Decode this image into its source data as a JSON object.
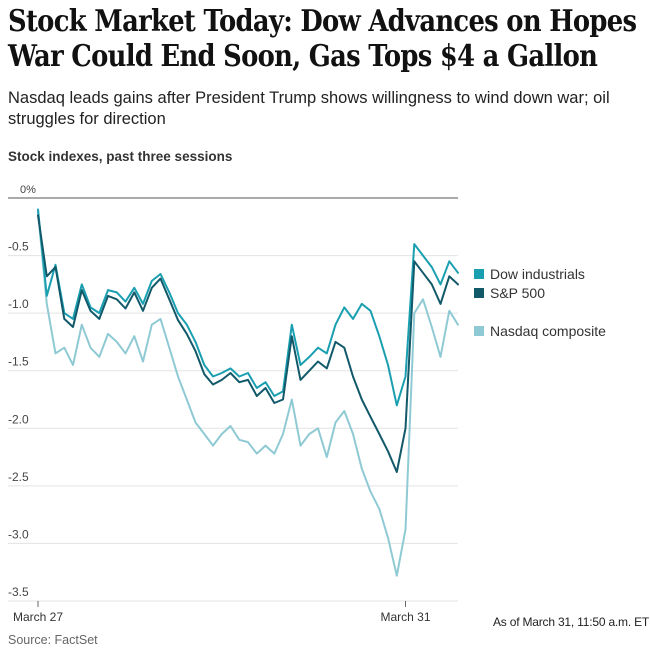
{
  "headline": {
    "line1": "Stock Market Today: Dow Advances on Hopes",
    "line2": "War Could End Soon, Gas Tops $4 a Gallon"
  },
  "dek": "Nasdaq leads gains after President Trump shows willingness to wind down war; oil struggles for direction",
  "chart_data": {
    "type": "line",
    "title": "Stock indexes, past three sessions",
    "xlabel": "",
    "ylabel": "",
    "ylim": [
      -3.5,
      0
    ],
    "yticks": [
      0,
      -0.5,
      -1.0,
      -1.5,
      -2.0,
      -2.5,
      -3.0,
      -3.5
    ],
    "ytick_labels": [
      "0%",
      "-0.5",
      "-1.0",
      "-1.5",
      "-2.0",
      "-2.5",
      "-3.0",
      "-3.5"
    ],
    "xticks": [
      {
        "label": "March 27",
        "index": 0
      },
      {
        "label": "March 31",
        "index": 42
      }
    ],
    "grid": true,
    "legend_position": "right",
    "series": [
      {
        "name": "Dow industrials",
        "color": "#1a9fb1",
        "values": [
          -0.1,
          -0.85,
          -0.58,
          -1.0,
          -1.05,
          -0.75,
          -0.95,
          -1.0,
          -0.8,
          -0.82,
          -0.9,
          -0.78,
          -0.92,
          -0.72,
          -0.66,
          -0.82,
          -1.0,
          -1.1,
          -1.25,
          -1.45,
          -1.55,
          -1.52,
          -1.48,
          -1.55,
          -1.52,
          -1.65,
          -1.6,
          -1.72,
          -1.68,
          -1.1,
          -1.45,
          -1.38,
          -1.3,
          -1.35,
          -1.1,
          -0.95,
          -1.05,
          -0.92,
          -0.98,
          -1.2,
          -1.45,
          -1.8,
          -1.55,
          -0.4,
          -0.5,
          -0.6,
          -0.75,
          -0.55,
          -0.65
        ]
      },
      {
        "name": "S&P 500",
        "color": "#12596a",
        "values": [
          -0.15,
          -0.68,
          -0.6,
          -1.05,
          -1.12,
          -0.8,
          -0.98,
          -1.05,
          -0.85,
          -0.88,
          -0.96,
          -0.82,
          -0.98,
          -0.78,
          -0.7,
          -0.88,
          -1.06,
          -1.18,
          -1.33,
          -1.53,
          -1.62,
          -1.58,
          -1.52,
          -1.6,
          -1.58,
          -1.72,
          -1.65,
          -1.78,
          -1.75,
          -1.2,
          -1.58,
          -1.5,
          -1.42,
          -1.48,
          -1.25,
          -1.3,
          -1.55,
          -1.75,
          -1.9,
          -2.05,
          -2.2,
          -2.38,
          -2.0,
          -0.55,
          -0.65,
          -0.75,
          -0.92,
          -0.68,
          -0.75
        ]
      },
      {
        "name": "Nasdaq composite",
        "color": "#8fcad4",
        "values": [
          -0.12,
          -0.92,
          -1.35,
          -1.3,
          -1.45,
          -1.1,
          -1.3,
          -1.38,
          -1.18,
          -1.25,
          -1.35,
          -1.2,
          -1.42,
          -1.1,
          -1.05,
          -1.3,
          -1.55,
          -1.75,
          -1.95,
          -2.05,
          -2.15,
          -2.05,
          -1.98,
          -2.1,
          -2.12,
          -2.22,
          -2.15,
          -2.22,
          -2.05,
          -1.75,
          -2.15,
          -2.05,
          -2.0,
          -2.25,
          -1.95,
          -1.85,
          -2.05,
          -2.35,
          -2.55,
          -2.7,
          -2.95,
          -3.28,
          -2.88,
          -1.0,
          -0.88,
          -1.12,
          -1.38,
          -0.98,
          -1.1
        ]
      }
    ],
    "as_of": "As of March 31, 11:50 a.m. ET",
    "source": "Source: FactSet"
  }
}
